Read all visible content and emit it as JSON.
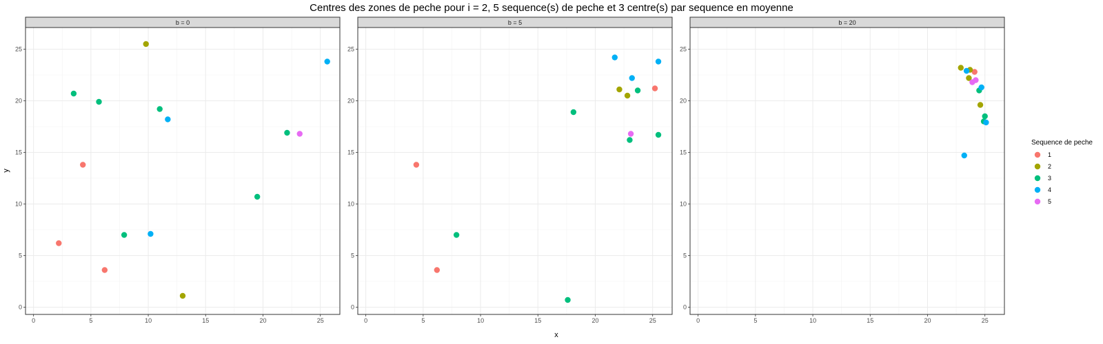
{
  "chart_data": {
    "type": "scatter",
    "title": "Centres des zones de peche pour i = 2, 5 sequence(s) de peche et 3 centre(s) par sequence en moyenne",
    "xlabel": "x",
    "ylabel": "y",
    "xlim": [
      -0.7,
      26.7
    ],
    "ylim": [
      -0.7,
      27.1
    ],
    "xticks": [
      0,
      5,
      10,
      15,
      20,
      25
    ],
    "yticks": [
      0,
      5,
      10,
      15,
      20,
      25
    ],
    "grid": true,
    "legend": {
      "title": "Sequence de peche",
      "placement": "right",
      "entries": [
        {
          "label": "1",
          "color": "#F8766D"
        },
        {
          "label": "2",
          "color": "#A3A500"
        },
        {
          "label": "3",
          "color": "#00BF7D"
        },
        {
          "label": "4",
          "color": "#00B0F6"
        },
        {
          "label": "5",
          "color": "#E76BF3"
        }
      ]
    },
    "panels": [
      {
        "label": "b = 0",
        "points": [
          {
            "x": 2.2,
            "y": 6.2,
            "seq": "1"
          },
          {
            "x": 4.3,
            "y": 13.8,
            "seq": "1"
          },
          {
            "x": 6.2,
            "y": 3.6,
            "seq": "1"
          },
          {
            "x": 9.8,
            "y": 25.5,
            "seq": "2"
          },
          {
            "x": 13.0,
            "y": 1.1,
            "seq": "2"
          },
          {
            "x": 3.5,
            "y": 20.7,
            "seq": "3"
          },
          {
            "x": 5.7,
            "y": 19.9,
            "seq": "3"
          },
          {
            "x": 7.9,
            "y": 7.0,
            "seq": "3"
          },
          {
            "x": 11.0,
            "y": 19.2,
            "seq": "3"
          },
          {
            "x": 19.5,
            "y": 10.7,
            "seq": "3"
          },
          {
            "x": 22.1,
            "y": 16.9,
            "seq": "3"
          },
          {
            "x": 10.2,
            "y": 7.1,
            "seq": "4"
          },
          {
            "x": 11.7,
            "y": 18.2,
            "seq": "4"
          },
          {
            "x": 25.6,
            "y": 23.8,
            "seq": "4"
          },
          {
            "x": 23.2,
            "y": 16.8,
            "seq": "5"
          }
        ]
      },
      {
        "label": "b = 5",
        "points": [
          {
            "x": 4.4,
            "y": 13.8,
            "seq": "1"
          },
          {
            "x": 6.2,
            "y": 3.6,
            "seq": "1"
          },
          {
            "x": 25.2,
            "y": 21.2,
            "seq": "1"
          },
          {
            "x": 22.1,
            "y": 21.1,
            "seq": "2"
          },
          {
            "x": 22.8,
            "y": 20.5,
            "seq": "2"
          },
          {
            "x": 7.9,
            "y": 7.0,
            "seq": "3"
          },
          {
            "x": 17.6,
            "y": 0.7,
            "seq": "3"
          },
          {
            "x": 18.1,
            "y": 18.9,
            "seq": "3"
          },
          {
            "x": 23.0,
            "y": 16.2,
            "seq": "3"
          },
          {
            "x": 23.7,
            "y": 21.0,
            "seq": "3"
          },
          {
            "x": 25.5,
            "y": 16.7,
            "seq": "3"
          },
          {
            "x": 21.7,
            "y": 24.2,
            "seq": "4"
          },
          {
            "x": 23.2,
            "y": 22.2,
            "seq": "4"
          },
          {
            "x": 25.5,
            "y": 23.8,
            "seq": "4"
          },
          {
            "x": 23.1,
            "y": 16.8,
            "seq": "5"
          }
        ]
      },
      {
        "label": "b = 20",
        "points": [
          {
            "x": 24.1,
            "y": 22.8,
            "seq": "1"
          },
          {
            "x": 22.9,
            "y": 23.2,
            "seq": "2"
          },
          {
            "x": 23.7,
            "y": 23.0,
            "seq": "2"
          },
          {
            "x": 23.6,
            "y": 22.2,
            "seq": "2"
          },
          {
            "x": 24.6,
            "y": 19.6,
            "seq": "2"
          },
          {
            "x": 24.5,
            "y": 21.0,
            "seq": "3"
          },
          {
            "x": 25.0,
            "y": 18.5,
            "seq": "3"
          },
          {
            "x": 24.9,
            "y": 18.0,
            "seq": "3"
          },
          {
            "x": 23.4,
            "y": 22.9,
            "seq": "4"
          },
          {
            "x": 24.7,
            "y": 21.3,
            "seq": "4"
          },
          {
            "x": 25.1,
            "y": 17.9,
            "seq": "4"
          },
          {
            "x": 23.2,
            "y": 14.7,
            "seq": "4"
          },
          {
            "x": 24.2,
            "y": 22.0,
            "seq": "5"
          },
          {
            "x": 23.9,
            "y": 21.8,
            "seq": "5"
          }
        ]
      }
    ]
  }
}
